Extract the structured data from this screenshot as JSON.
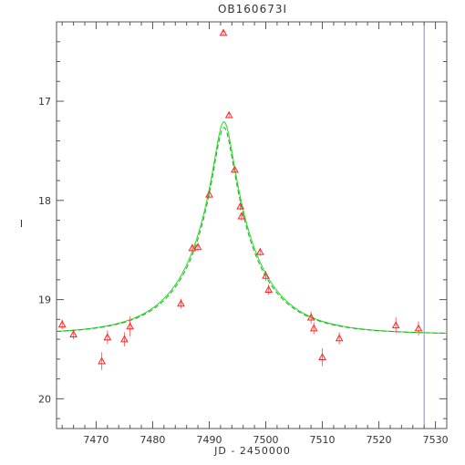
{
  "chart_data": {
    "type": "scatter",
    "title": "OB160673I",
    "xlabel": "JD - 2450000",
    "ylabel": "I",
    "xlim": [
      7463,
      7532
    ],
    "ylim": [
      20.3,
      16.2
    ],
    "y_inverted": true,
    "x_ticks": [
      7470,
      7480,
      7490,
      7500,
      7510,
      7520,
      7530
    ],
    "y_ticks": [
      17,
      18,
      19,
      20
    ],
    "grid": false,
    "marker": "triangle",
    "colors": {
      "axes": "#555555",
      "points": "#ff2222",
      "error_bars": "#ff6666",
      "model_solid": "#22dd22",
      "model_dashed": "#22aa22",
      "vline": "#8888cc"
    },
    "vline_x": 7528,
    "series": [
      {
        "kind": "observations",
        "x": [
          7464,
          7466,
          7471,
          7472,
          7475,
          7476,
          7485,
          7487,
          7488,
          7490,
          7492.5,
          7493.5,
          7494.5,
          7495.5,
          7495.7,
          7499,
          7500,
          7500.5,
          7508,
          7508.5,
          7510,
          7513,
          7523,
          7527
        ],
        "y": [
          19.25,
          19.35,
          19.62,
          19.38,
          19.4,
          19.27,
          19.04,
          18.48,
          18.47,
          17.94,
          16.31,
          17.14,
          17.69,
          18.06,
          18.16,
          18.52,
          18.76,
          18.9,
          19.18,
          19.29,
          19.58,
          19.39,
          19.26,
          19.29
        ],
        "err": [
          0.05,
          0.05,
          0.09,
          0.07,
          0.07,
          0.1,
          0.05,
          0.04,
          0.04,
          0.03,
          0.02,
          0.03,
          0.03,
          0.04,
          0.04,
          0.04,
          0.05,
          0.05,
          0.06,
          0.06,
          0.09,
          0.06,
          0.08,
          0.07
        ]
      },
      {
        "kind": "model",
        "style": "solid",
        "t0": 7492.6,
        "tE": 11.5,
        "u0": 0.14,
        "i_base": 19.35,
        "blend": 1.0
      },
      {
        "kind": "model",
        "style": "dashed",
        "t0": 7492.6,
        "tE": 11.5,
        "u0": 0.14,
        "i_base": 19.35,
        "blend": 0.94
      }
    ]
  }
}
